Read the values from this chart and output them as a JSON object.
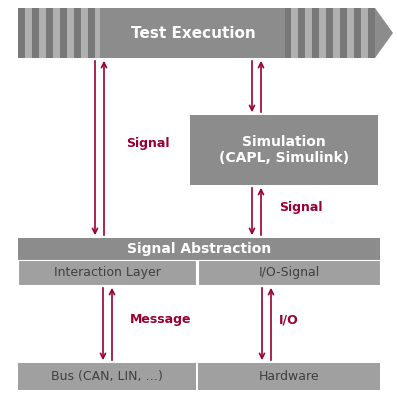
{
  "bg_color": "#ffffff",
  "arrow_color": "#990033",
  "gray_banner": "#8c8c8c",
  "gray_sim": "#8c8c8c",
  "gray_sa": "#8c8c8c",
  "gray_il": "#a0a0a0",
  "gray_bus": "#a0a0a0",
  "stripe_light": "#b0b0b0",
  "stripe_dark": "#787878",
  "text_white": "#ffffff",
  "text_dark": "#404040",
  "test_exec_label": "Test Execution",
  "simulation_label": "Simulation\n(CAPL, Simulink)",
  "signal_abs_label": "Signal Abstraction",
  "interaction_label": "Interaction Layer",
  "io_signal_label": "I/O-Signal",
  "bus_label": "Bus (CAN, LIN, …)",
  "hardware_label": "Hardware",
  "signal_left_label": "Signal",
  "signal_right_label": "Signal",
  "message_label": "Message",
  "io_label": "I/O",
  "fig_w": 3.97,
  "fig_h": 4.07,
  "dpi": 100
}
